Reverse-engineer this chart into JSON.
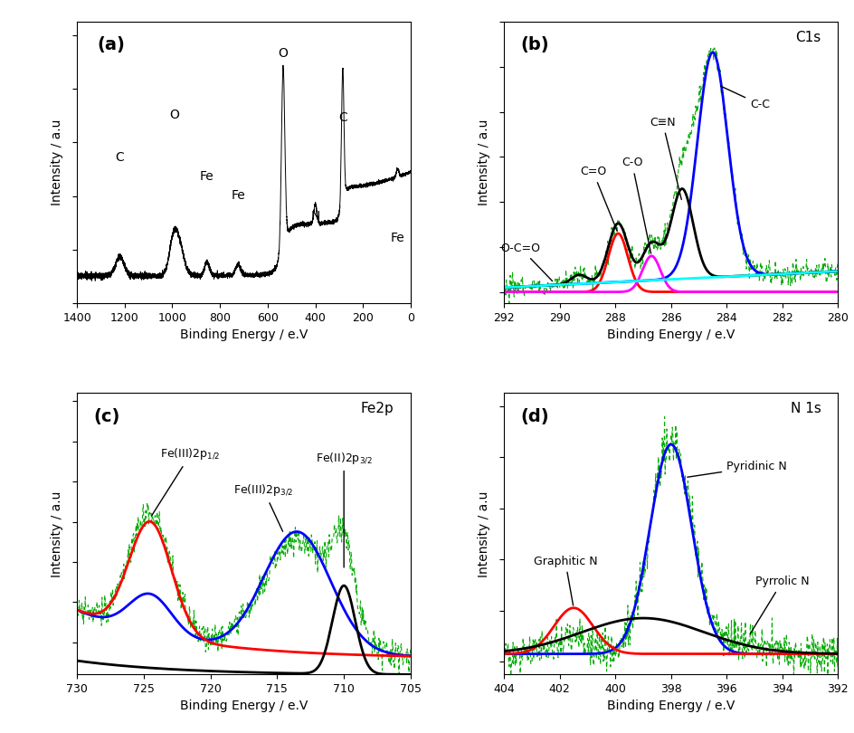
{
  "panel_a": {
    "label": "(a)",
    "xlabel": "Binding Energy / e.V",
    "ylabel": "Intensity / a.u",
    "xlim": [
      1400,
      0
    ],
    "xticks": [
      1400,
      1200,
      1000,
      800,
      600,
      400,
      200,
      0
    ]
  },
  "panel_b": {
    "label": "(b)",
    "corner_label": "C1s",
    "xlabel": "Binding Energy / e.V",
    "ylabel": "Intensity / a.u",
    "xlim": [
      292,
      280
    ],
    "xticks": [
      292,
      290,
      288,
      286,
      284,
      282,
      280
    ]
  },
  "panel_c": {
    "label": "(c)",
    "corner_label": "Fe2p",
    "xlabel": "Binding Energy / e.V",
    "ylabel": "Intensity / a.u",
    "xlim": [
      730,
      705
    ],
    "xticks": [
      730,
      725,
      720,
      715,
      710,
      705
    ]
  },
  "panel_d": {
    "label": "(d)",
    "corner_label": "N 1s",
    "xlabel": "Binding Energy / e.V",
    "ylabel": "Intensity / a.u",
    "xlim": [
      404,
      392
    ],
    "xticks": [
      404,
      402,
      400,
      398,
      396,
      394,
      392
    ]
  }
}
